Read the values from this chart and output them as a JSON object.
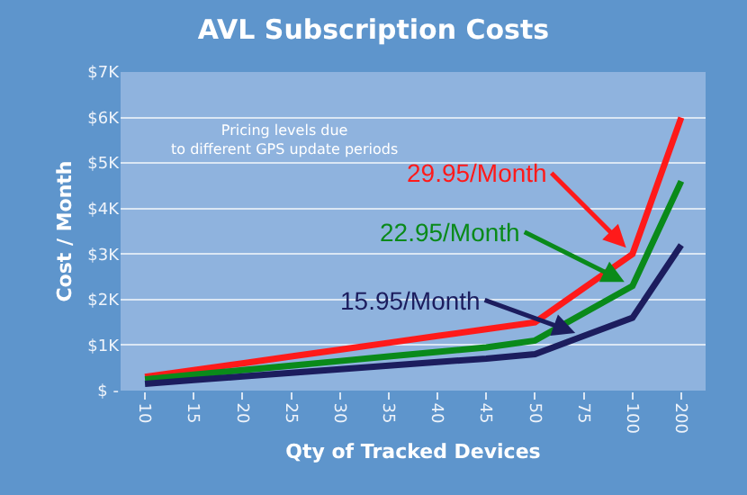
{
  "chart_data": {
    "type": "line",
    "title": "AVL Subscription Costs",
    "xlabel": "Qty of Tracked Devices",
    "ylabel": "Cost / Month",
    "categories": [
      "10",
      "15",
      "20",
      "25",
      "30",
      "35",
      "40",
      "45",
      "50",
      "75",
      "100",
      "200"
    ],
    "series": [
      {
        "color": "#ff1a1a",
        "values": [
          300,
          450,
          600,
          750,
          900,
          1050,
          1200,
          1350,
          1500,
          2250,
          3000,
          6000
        ]
      },
      {
        "color": "#0a8a1a",
        "values": [
          250,
          350,
          450,
          550,
          650,
          750,
          850,
          950,
          1100,
          1700,
          2300,
          4600
        ]
      },
      {
        "color": "#1c1d5e",
        "values": [
          150,
          230,
          310,
          390,
          470,
          550,
          630,
          700,
          800,
          1200,
          1600,
          3200
        ]
      }
    ],
    "annotations": [
      {
        "text": "29.95/Month",
        "x": "100",
        "y": 3000
      },
      {
        "text": "22.95/Month",
        "x": "100",
        "y": 2300
      },
      {
        "text": "15.95/Month",
        "x": "75",
        "y": 1200
      },
      "Pricing levels due to different GPS update periods"
    ],
    "ylim": [
      0,
      7000
    ],
    "yticks": [
      {
        "value": 0,
        "label": "$ -"
      },
      {
        "value": 1000,
        "label": "$1K"
      },
      {
        "value": 2000,
        "label": "$2K"
      },
      {
        "value": 3000,
        "label": "$3K"
      },
      {
        "value": 4000,
        "label": "$4K"
      },
      {
        "value": 5000,
        "label": "$5K"
      },
      {
        "value": 6000,
        "label": "$6K"
      },
      {
        "value": 7000,
        "label": "$7K"
      }
    ],
    "grid": "y",
    "marker": "none",
    "line_style": "solid"
  }
}
